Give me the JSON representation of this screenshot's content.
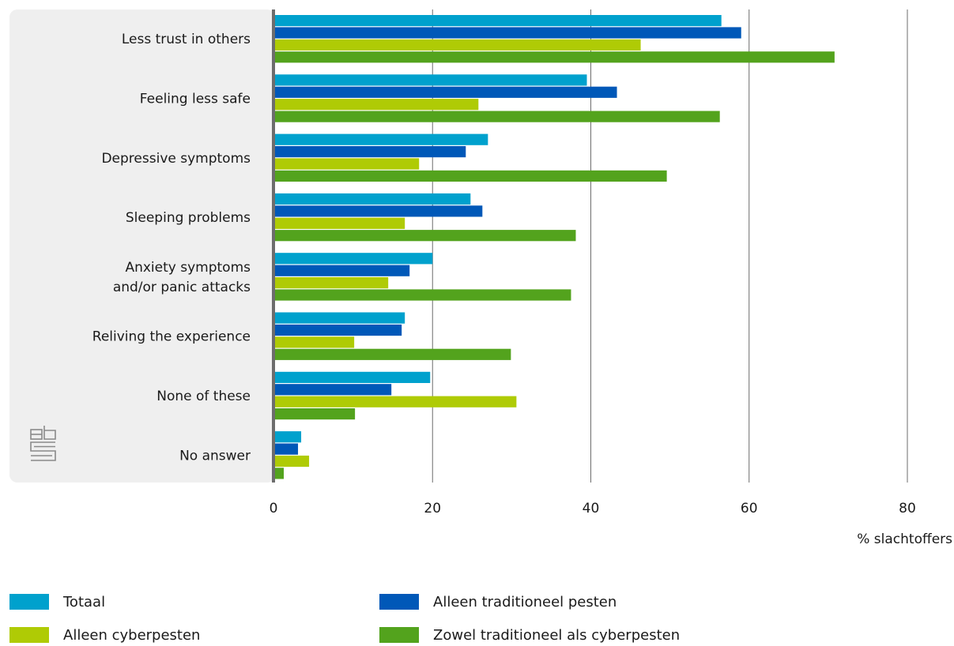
{
  "chart_data": {
    "type": "bar",
    "orientation": "horizontal",
    "categories": [
      "Less trust in others",
      "Feeling less safe",
      "Depressive symptoms",
      "Sleeping problems",
      "Anxiety symptoms and/or panic attacks",
      "Reliving the experience",
      "None of these",
      "No answer"
    ],
    "category_lines": [
      [
        "Less trust in others"
      ],
      [
        "Feeling less safe"
      ],
      [
        "Depressive symptoms"
      ],
      [
        "Sleeping problems"
      ],
      [
        "Anxiety symptoms",
        "and/or panic attacks"
      ],
      [
        "Reliving the experience"
      ],
      [
        "None of these"
      ],
      [
        "No answer"
      ]
    ],
    "series": [
      {
        "name": "Totaal",
        "color": "#00a1cd",
        "values": [
          56.5,
          39.5,
          27,
          24.8,
          20,
          16.5,
          19.7,
          3.4
        ]
      },
      {
        "name": "Alleen traditioneel pesten",
        "color": "#0058b8",
        "values": [
          59,
          43.3,
          24.2,
          26.3,
          17.1,
          16.1,
          14.8,
          3
        ]
      },
      {
        "name": "Alleen cyberpesten",
        "color": "#afcb05",
        "values": [
          46.3,
          25.8,
          18.3,
          16.5,
          14.4,
          10.1,
          30.6,
          4.4
        ]
      },
      {
        "name": "Zowel traditioneel als cyberpesten",
        "color": "#53a31d",
        "values": [
          70.8,
          56.3,
          49.6,
          38.1,
          37.5,
          29.9,
          10.2,
          1.2
        ]
      }
    ],
    "xlim": [
      0,
      80
    ],
    "xticks": [
      "0",
      "20",
      "40",
      "60",
      "80"
    ],
    "xlabel": "% slachtoffers",
    "ylabel": "",
    "title": "",
    "grid": true,
    "legend_position": "bottom"
  },
  "colors": {
    "panel_background": "#efefef",
    "axis_line": "#6d6d6d",
    "grid_line": "#6d6d6d"
  },
  "icons": {
    "logo": "cbs-logo"
  }
}
